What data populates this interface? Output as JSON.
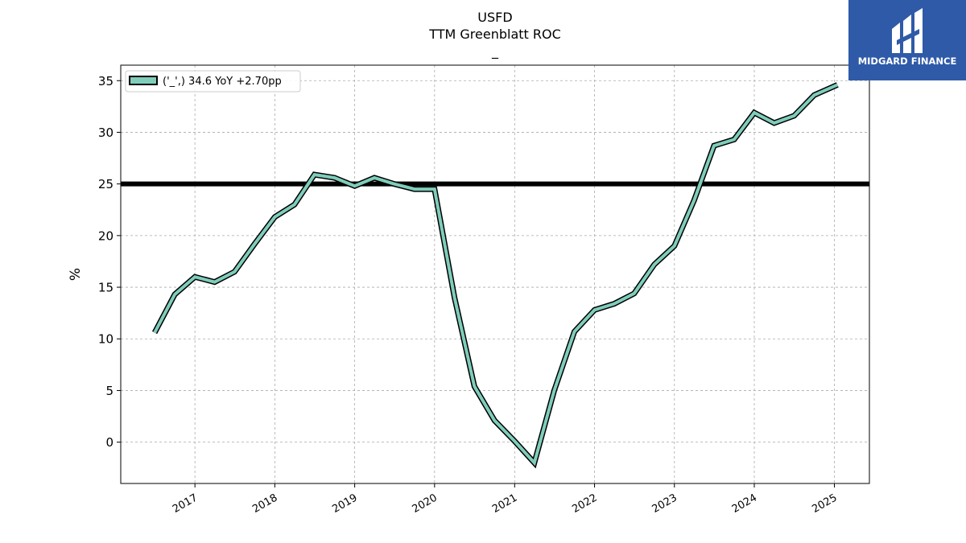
{
  "chart_data": {
    "type": "line",
    "title_lines": [
      "USFD",
      "TTM Greenblatt ROC",
      "_"
    ],
    "ylabel": "%",
    "xlabel": "",
    "x_ticks": [
      "2017",
      "2018",
      "2019",
      "2020",
      "2021",
      "2022",
      "2023",
      "2024",
      "2025"
    ],
    "y_ticks": [
      0,
      5,
      10,
      15,
      20,
      25,
      30,
      35
    ],
    "ylim": [
      -4,
      36.5
    ],
    "xlim": [
      "2016-01-28",
      "2025-06-10"
    ],
    "grid": true,
    "legend_position": "top-left",
    "reference_line": 25,
    "series": [
      {
        "name": "('_',) 34.6 YoY +2.70pp",
        "color": "#7fcdbb",
        "points": [
          [
            "2016-07-01",
            10.6
          ],
          [
            "2016-10-01",
            14.3
          ],
          [
            "2017-01-01",
            16.0
          ],
          [
            "2017-04-01",
            15.5
          ],
          [
            "2017-07-01",
            16.5
          ],
          [
            "2017-10-01",
            19.2
          ],
          [
            "2018-01-01",
            21.8
          ],
          [
            "2018-04-01",
            23.0
          ],
          [
            "2018-07-01",
            25.9
          ],
          [
            "2018-10-01",
            25.6
          ],
          [
            "2019-01-01",
            24.8
          ],
          [
            "2019-04-01",
            25.6
          ],
          [
            "2019-07-01",
            25.0
          ],
          [
            "2019-10-01",
            24.5
          ],
          [
            "2020-01-01",
            24.5
          ],
          [
            "2020-04-01",
            14.0
          ],
          [
            "2020-07-01",
            5.4
          ],
          [
            "2020-10-01",
            2.1
          ],
          [
            "2021-01-01",
            0.1
          ],
          [
            "2021-04-01",
            -2.0
          ],
          [
            "2021-07-01",
            5.0
          ],
          [
            "2021-10-01",
            10.7
          ],
          [
            "2022-01-01",
            12.8
          ],
          [
            "2022-04-01",
            13.4
          ],
          [
            "2022-07-01",
            14.4
          ],
          [
            "2022-10-01",
            17.2
          ],
          [
            "2023-01-01",
            19.0
          ],
          [
            "2023-04-01",
            23.4
          ],
          [
            "2023-07-01",
            28.7
          ],
          [
            "2023-10-01",
            29.3
          ],
          [
            "2024-01-01",
            31.9
          ],
          [
            "2024-04-01",
            30.9
          ],
          [
            "2024-07-01",
            31.6
          ],
          [
            "2024-10-01",
            33.6
          ],
          [
            "2025-01-15",
            34.6
          ]
        ]
      }
    ]
  },
  "brand": {
    "name": "MIDGARD FINANCE",
    "background": "#2f5aa8"
  }
}
